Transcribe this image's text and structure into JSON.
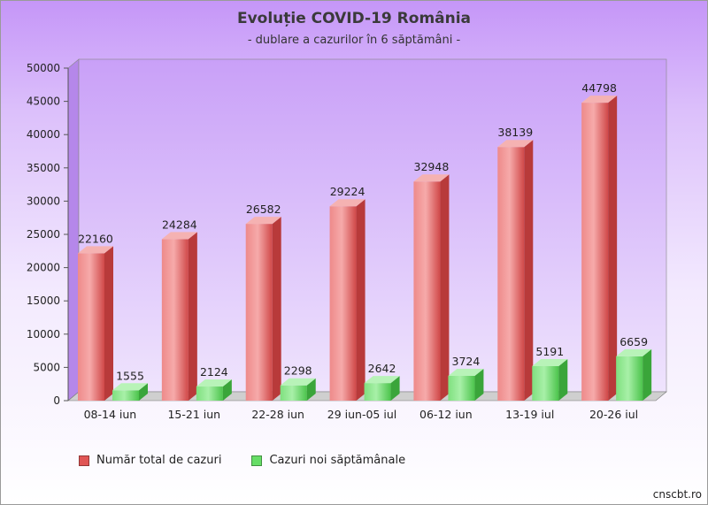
{
  "title": "Evoluție COVID-19 România",
  "subtitle": "- dublare a cazurilor în 6 săptămâni -",
  "credit": "cnscbt.ro",
  "chart_data": {
    "type": "bar",
    "categories": [
      "08-14 iun",
      "15-21 iun",
      "22-28 iun",
      "29 iun-05 iul",
      "06-12 iun",
      "13-19 iul",
      "20-26 iul"
    ],
    "series": [
      {
        "name": "Număr total de cazuri",
        "color": "#e05555",
        "values": [
          22160,
          24284,
          26582,
          29224,
          32948,
          38139,
          44798
        ]
      },
      {
        "name": "Cazuri noi săptămânale",
        "color": "#66dd66",
        "values": [
          1555,
          2124,
          2298,
          2642,
          3724,
          5191,
          6659
        ]
      }
    ],
    "yticks": [
      0,
      5000,
      10000,
      15000,
      20000,
      25000,
      30000,
      35000,
      40000,
      45000,
      50000
    ],
    "ylim": [
      0,
      50000
    ],
    "xlabel": "",
    "ylabel": "",
    "grid": false,
    "legend_position": "bottom-left"
  }
}
